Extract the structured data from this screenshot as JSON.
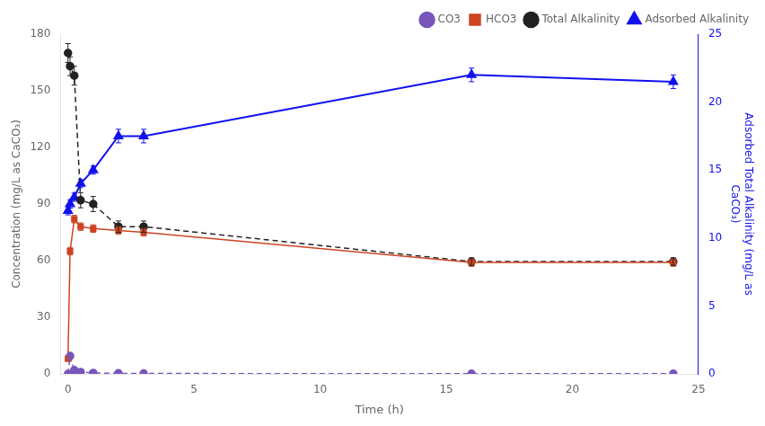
{
  "chart_data": {
    "type": "line",
    "xlabel": "Time (h)",
    "ylabel": "Concentration (mg/L as CaCO₃)",
    "y2label": "Adsorbed Total Alkalinity (mg/L as\nCaCO₃)",
    "xlim": [
      -0.3,
      25
    ],
    "xticks": [
      0,
      5,
      10,
      15,
      20,
      25
    ],
    "ylim": [
      0,
      180
    ],
    "yticks": [
      0,
      30,
      60,
      90,
      120,
      150,
      180
    ],
    "y2lim": [
      0,
      25
    ],
    "y2ticks": [
      0,
      5,
      10,
      15,
      20,
      25
    ],
    "grid": false,
    "legend": "upper right",
    "series": [
      {
        "name": "CO3",
        "color": "#7755bb",
        "marker": "circle",
        "line_style": "dashed",
        "x": [
          0,
          0.083,
          0.25,
          0.5,
          1.0,
          2.0,
          3.0,
          16.0,
          24.0
        ],
        "values": [
          0,
          9.5,
          2.0,
          1.0,
          0.5,
          0.3,
          0.2,
          0.1,
          0.1
        ]
      },
      {
        "name": "HCO3",
        "color": "#cc4422",
        "marker": "square",
        "line_style": "solid",
        "x": [
          0,
          0.083,
          0.25,
          0.5,
          1.0,
          2.0,
          3.0,
          16.0,
          24.0
        ],
        "values": [
          8,
          65.0,
          82.0,
          78.0,
          77.0,
          76.0,
          75.0,
          59.0,
          59.0
        ],
        "errors": [
          1,
          2.0,
          2.0,
          2.0,
          2.0,
          2.0,
          2.0,
          2.0,
          2.0
        ]
      },
      {
        "name": "Total Alkalinity",
        "color": "#222222",
        "marker": "circle",
        "line_style": "dashed",
        "x": [
          0,
          0.083,
          0.25,
          0.5,
          1.0,
          2.0,
          3.0,
          16.0,
          24.0
        ],
        "values": [
          170,
          163.0,
          158.0,
          92.0,
          90.0,
          78.0,
          78.0,
          59.5,
          59.5
        ],
        "errors": [
          5,
          5.0,
          5.0,
          4.0,
          4.0,
          3.0,
          3.0,
          2.0,
          2.0
        ]
      },
      {
        "name": "Adsorbed Alkalinity",
        "color": "#1111ee",
        "marker": "triangle",
        "line_style": "solid",
        "axis": "y2",
        "x": [
          0,
          0.083,
          0.25,
          0.5,
          1.0,
          2.0,
          3.0,
          16.0,
          24.0
        ],
        "values": [
          12.0,
          12.5,
          13.0,
          14.0,
          15.0,
          17.5,
          17.5,
          22.0,
          21.5
        ],
        "errors": [
          0.3,
          0.3,
          0.3,
          0.3,
          0.3,
          0.5,
          0.5,
          0.5,
          0.5
        ]
      }
    ]
  }
}
